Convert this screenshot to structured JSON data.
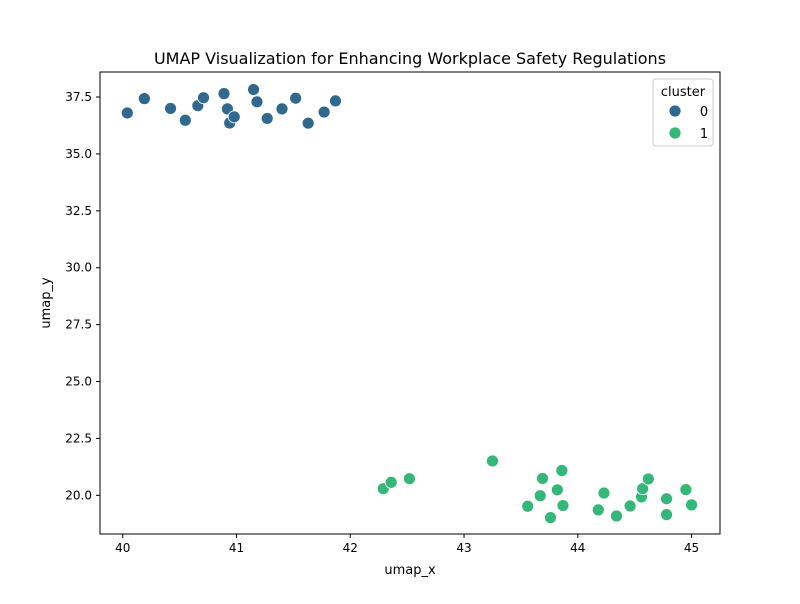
{
  "chart_data": {
    "type": "scatter",
    "title": "UMAP Visualization for Enhancing Workplace Safety Regulations",
    "xlabel": "umap_x",
    "ylabel": "umap_y",
    "xlim": [
      39.8,
      45.25
    ],
    "ylim": [
      18.3,
      38.6
    ],
    "xticks": [
      "40",
      "41",
      "42",
      "43",
      "44",
      "45"
    ],
    "yticks": [
      "20.0",
      "22.5",
      "25.0",
      "27.5",
      "30.0",
      "32.5",
      "35.0",
      "37.5"
    ],
    "grid": false,
    "legend": {
      "title": "cluster",
      "position": "top-right"
    },
    "series": [
      {
        "name": "0",
        "color": "#31688e",
        "points": [
          [
            40.04,
            36.8
          ],
          [
            40.19,
            37.43
          ],
          [
            40.42,
            37.0
          ],
          [
            40.55,
            36.48
          ],
          [
            40.66,
            37.12
          ],
          [
            40.71,
            37.47
          ],
          [
            40.89,
            37.65
          ],
          [
            40.92,
            36.98
          ],
          [
            40.94,
            36.36
          ],
          [
            40.98,
            36.63
          ],
          [
            41.15,
            37.83
          ],
          [
            41.18,
            37.29
          ],
          [
            41.27,
            36.56
          ],
          [
            41.4,
            36.98
          ],
          [
            41.52,
            37.45
          ],
          [
            41.63,
            36.35
          ],
          [
            41.77,
            36.84
          ],
          [
            41.87,
            37.33
          ]
        ]
      },
      {
        "name": "1",
        "color": "#35b779",
        "points": [
          [
            42.29,
            20.29
          ],
          [
            42.36,
            20.57
          ],
          [
            42.52,
            20.73
          ],
          [
            43.25,
            21.51
          ],
          [
            43.56,
            19.52
          ],
          [
            43.67,
            19.98
          ],
          [
            43.69,
            20.74
          ],
          [
            43.76,
            19.02
          ],
          [
            43.82,
            20.24
          ],
          [
            43.86,
            21.09
          ],
          [
            43.87,
            19.55
          ],
          [
            44.18,
            19.36
          ],
          [
            44.23,
            20.1
          ],
          [
            44.34,
            19.09
          ],
          [
            44.46,
            19.53
          ],
          [
            44.56,
            19.93
          ],
          [
            44.57,
            20.29
          ],
          [
            44.62,
            20.72
          ],
          [
            44.78,
            19.15
          ],
          [
            44.78,
            19.85
          ],
          [
            44.95,
            20.25
          ],
          [
            45.0,
            19.58
          ]
        ]
      }
    ]
  }
}
